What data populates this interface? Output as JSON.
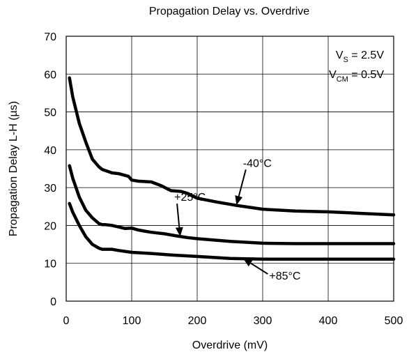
{
  "chart_data": {
    "type": "line",
    "title": "Propagation Delay vs. Overdrive",
    "xlabel": "Overdrive (mV)",
    "ylabel": "Propagation Delay L-H (µs)",
    "xlim": [
      0,
      500
    ],
    "ylim": [
      0,
      70
    ],
    "xticks": [
      0,
      100,
      200,
      300,
      400,
      500
    ],
    "yticks": [
      0,
      10,
      20,
      30,
      40,
      50,
      60,
      70
    ],
    "xtick_labels": [
      "0",
      "100",
      "200",
      "300",
      "400",
      "500"
    ],
    "ytick_labels": [
      "0",
      "10",
      "20",
      "30",
      "40",
      "50",
      "60",
      "70"
    ],
    "grid": true,
    "conditions": [
      {
        "symbol": "V",
        "sub": "S",
        "rest": " = 2.5V"
      },
      {
        "symbol": "V",
        "sub": "CM",
        "rest": " = 0.5V"
      }
    ],
    "series": [
      {
        "name": "-40°C",
        "x": [
          5,
          10,
          20,
          30,
          40,
          50,
          55,
          60,
          70,
          80,
          95,
          100,
          110,
          130,
          145,
          160,
          175,
          185,
          200,
          230,
          260,
          300,
          350,
          400,
          450,
          500
        ],
        "y": [
          59,
          54,
          47,
          42,
          37.5,
          35.5,
          34.8,
          34.5,
          33.9,
          33.7,
          33,
          32,
          31.7,
          31.5,
          30.5,
          29.2,
          29,
          28.5,
          27.2,
          26.2,
          25.3,
          24.3,
          23.8,
          23.6,
          23.2,
          22.8
        ]
      },
      {
        "name": "+25°C",
        "x": [
          5,
          10,
          20,
          30,
          40,
          50,
          55,
          60,
          70,
          80,
          90,
          100,
          110,
          120,
          130,
          150,
          170,
          185,
          200,
          250,
          300,
          350,
          400,
          450,
          500
        ],
        "y": [
          35.8,
          32.5,
          27.5,
          24,
          22,
          20.5,
          20.2,
          20.2,
          20,
          19.6,
          19.2,
          19.3,
          18.8,
          18.5,
          18.2,
          17.8,
          17.2,
          16.8,
          16.5,
          15.8,
          15.3,
          15.2,
          15.2,
          15.2,
          15.2
        ]
      },
      {
        "name": "+85°C",
        "x": [
          5,
          10,
          20,
          30,
          40,
          50,
          55,
          60,
          70,
          80,
          100,
          130,
          160,
          200,
          250,
          300,
          350,
          400,
          450,
          500
        ],
        "y": [
          25.8,
          23.5,
          20,
          17,
          15,
          14,
          13.7,
          13.7,
          13.7,
          13.4,
          12.9,
          12.6,
          12.2,
          11.8,
          11.3,
          11.1,
          11.1,
          11.1,
          11.1,
          11.1
        ]
      }
    ],
    "annotations": [
      {
        "text": "-40°C",
        "series": "-40°C",
        "at": [
          270,
          35.5
        ],
        "arrow_to": [
          260,
          25.4
        ]
      },
      {
        "text": "+25°C",
        "series": "+25°C",
        "at": [
          165,
          26.5
        ],
        "arrow_to": [
          174,
          17.1
        ]
      },
      {
        "text": "+85°C",
        "series": "+85°C",
        "at": [
          310,
          5.7
        ],
        "arrow_to": [
          270,
          11.3
        ]
      }
    ]
  }
}
